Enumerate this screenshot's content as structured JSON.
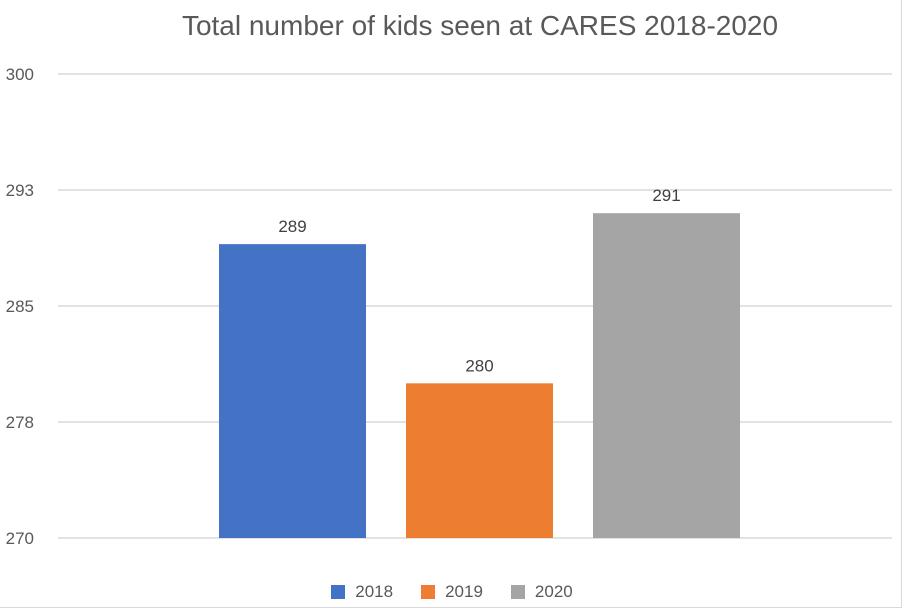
{
  "chart_data": {
    "type": "bar",
    "title": "Total number of kids seen at CARES 2018-2020",
    "xlabel": "",
    "ylabel": "",
    "ylim": [
      270,
      300
    ],
    "yticks": [
      "270",
      "278",
      "285",
      "293",
      "300"
    ],
    "grid": true,
    "legend_position": "bottom",
    "series": [
      {
        "name": "2018",
        "value": 289,
        "label": "289",
        "color": "#4472c4"
      },
      {
        "name": "2019",
        "value": 280,
        "label": "280",
        "color": "#ed7d31"
      },
      {
        "name": "2020",
        "value": 291,
        "label": "291",
        "color": "#a5a5a5"
      }
    ]
  }
}
